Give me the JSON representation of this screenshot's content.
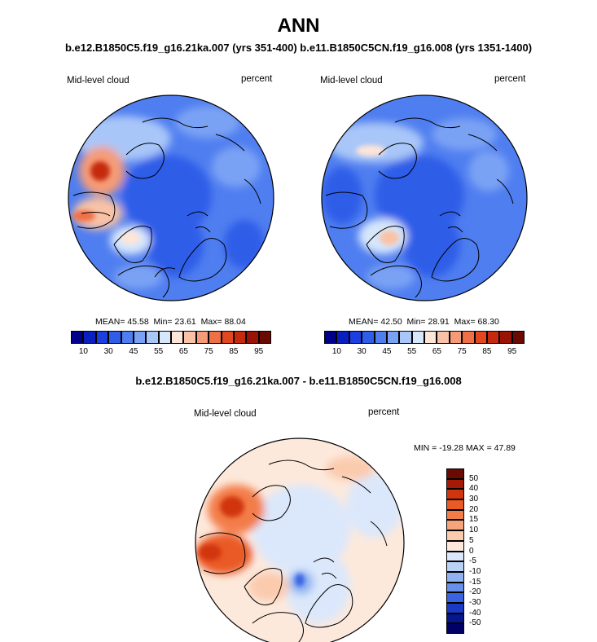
{
  "title": "ANN",
  "subtitle": "b.e12.B1850C5.f19_g16.21ka.007 (yrs 351-400) b.e11.B1850C5CN.f19_g16.008 (yrs 1351-1400)",
  "panels": [
    {
      "variable": "Mid-level cloud",
      "units": "percent",
      "mean_label": "MEAN=",
      "mean": "45.58",
      "min_label": "Min=",
      "min": "23.61",
      "max_label": "Max=",
      "max": "88.04"
    },
    {
      "variable": "Mid-level cloud",
      "units": "percent",
      "mean_label": "MEAN=",
      "mean": "42.50",
      "min_label": "Min=",
      "min": "28.91",
      "max_label": "Max=",
      "max": "68.30"
    }
  ],
  "colorbar_top": {
    "labels": [
      "10",
      "30",
      "45",
      "55",
      "65",
      "75",
      "85",
      "95"
    ],
    "colors": [
      "#00008b",
      "#0a1fbf",
      "#1e3fe0",
      "#2f5de8",
      "#4f7ef0",
      "#7aa2f4",
      "#a9c6f8",
      "#d6e6fb",
      "#fde5d8",
      "#f9c2a6",
      "#f59b77",
      "#ef6f47",
      "#e3471f",
      "#c52a0c",
      "#9a1405",
      "#6b0a02"
    ]
  },
  "difference": {
    "title": "b.e12.B1850C5.f19_g16.21ka.007 - b.e11.B1850C5CN.f19_g16.008",
    "variable": "Mid-level cloud",
    "units": "percent",
    "minmax": "MIN = -19.28 MAX =  47.89",
    "colorbar": {
      "labels": [
        "50",
        "40",
        "30",
        "20",
        "15",
        "10",
        "5",
        "0",
        "-5",
        "-10",
        "-15",
        "-20",
        "-30",
        "-40",
        "-50"
      ],
      "colors": [
        "#6b0a02",
        "#a41a06",
        "#d13510",
        "#ea5a25",
        "#f37d48",
        "#f8a47a",
        "#fbcbae",
        "#fde9dc",
        "#dbe8fb",
        "#b9d2f7",
        "#8fb3f2",
        "#6690ec",
        "#3a63e3",
        "#1a39c4",
        "#06168c",
        "#000066"
      ]
    }
  }
}
